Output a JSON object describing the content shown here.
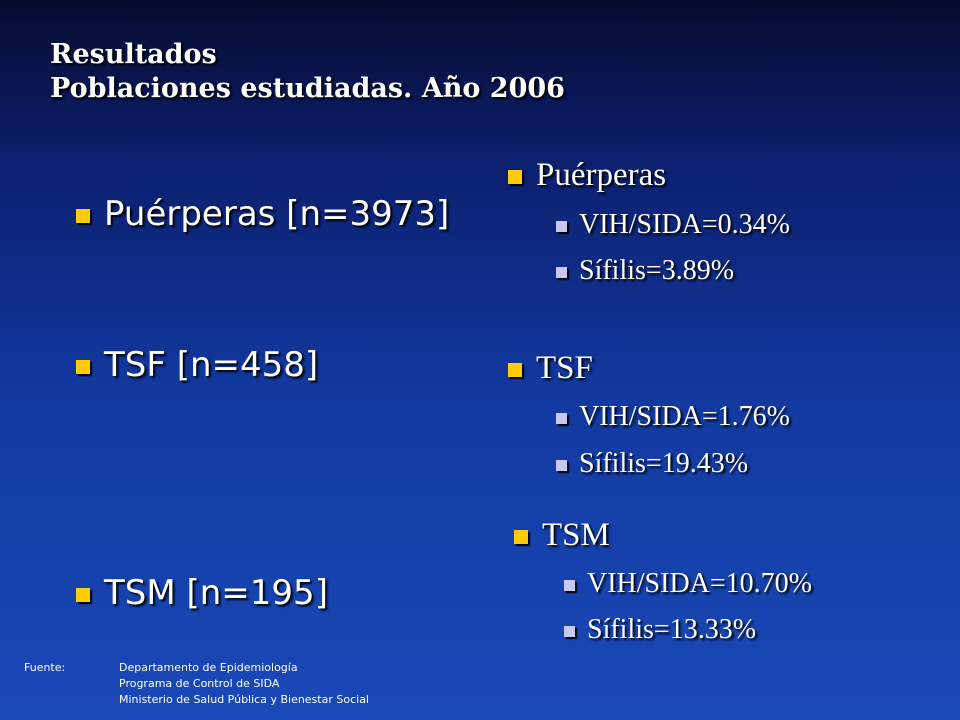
{
  "title": {
    "line1": "Resultados",
    "line2": "Poblaciones estudiadas. Año 2006"
  },
  "left_items": [
    {
      "label": "Puérperas [n=3973]"
    },
    {
      "label": "TSF [n=458]"
    },
    {
      "label": "TSM [n=195]"
    }
  ],
  "groups": [
    {
      "name": "Puérperas",
      "items": [
        "VIH/SIDA=0.34%",
        "Sífilis=3.89%"
      ]
    },
    {
      "name": "TSF",
      "items": [
        "VIH/SIDA=1.76%",
        "Sífilis=19.43%"
      ]
    },
    {
      "name": "TSM",
      "items": [
        "VIH/SIDA=10.70%",
        "Sífilis=13.33%"
      ]
    }
  ],
  "footer": {
    "label": "Fuente:",
    "lines": [
      "Departamento de Epidemiología",
      "Programa de Control  de SIDA",
      "Ministerio de Salud Pública y Bienestar Social"
    ]
  },
  "colors": {
    "bullet_main": "#ffcc00",
    "bullet_sub": "#c8c8f0",
    "background": "#1239a0"
  }
}
